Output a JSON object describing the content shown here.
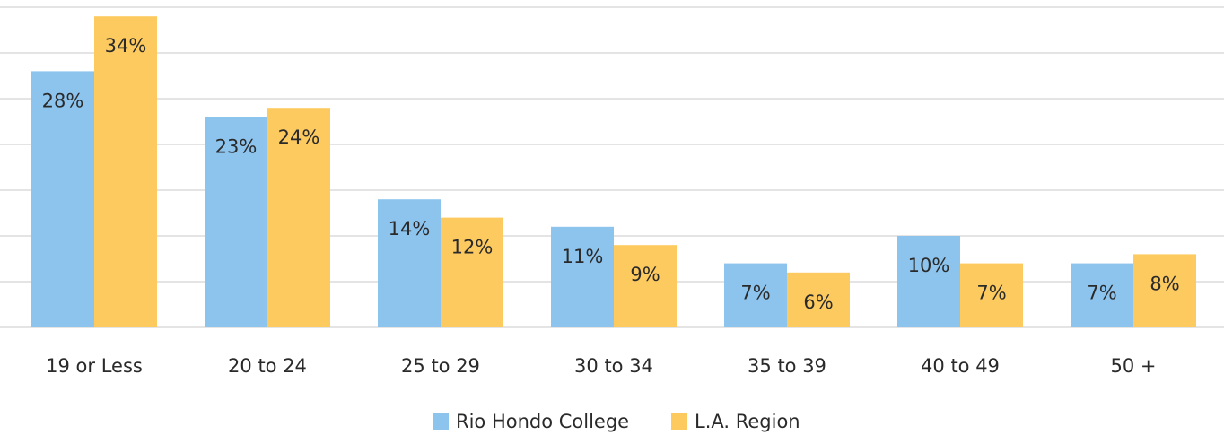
{
  "chart_data": {
    "type": "bar",
    "categories": [
      "19 or Less",
      "20 to 24",
      "25 to 29",
      "30 to 34",
      "35 to 39",
      "40 to 49",
      "50 +"
    ],
    "series": [
      {
        "name": "Rio Hondo College",
        "color": "#8dc4ee",
        "values": [
          28,
          23,
          14,
          11,
          7,
          10,
          7
        ],
        "value_labels": [
          "28%",
          "23%",
          "14%",
          "11%",
          "7%",
          "10%",
          "7%"
        ]
      },
      {
        "name": "L.A. Region",
        "color": "#fdca5f",
        "values": [
          34,
          24,
          12,
          9,
          6,
          7,
          8
        ],
        "value_labels": [
          "34%",
          "24%",
          "12%",
          "9%",
          "6%",
          "7%",
          "8%"
        ]
      }
    ],
    "ylim": [
      0,
      35
    ],
    "yticks": [
      0,
      5,
      10,
      15,
      20,
      25,
      30,
      35
    ],
    "grid": true,
    "legend": "bottom"
  }
}
